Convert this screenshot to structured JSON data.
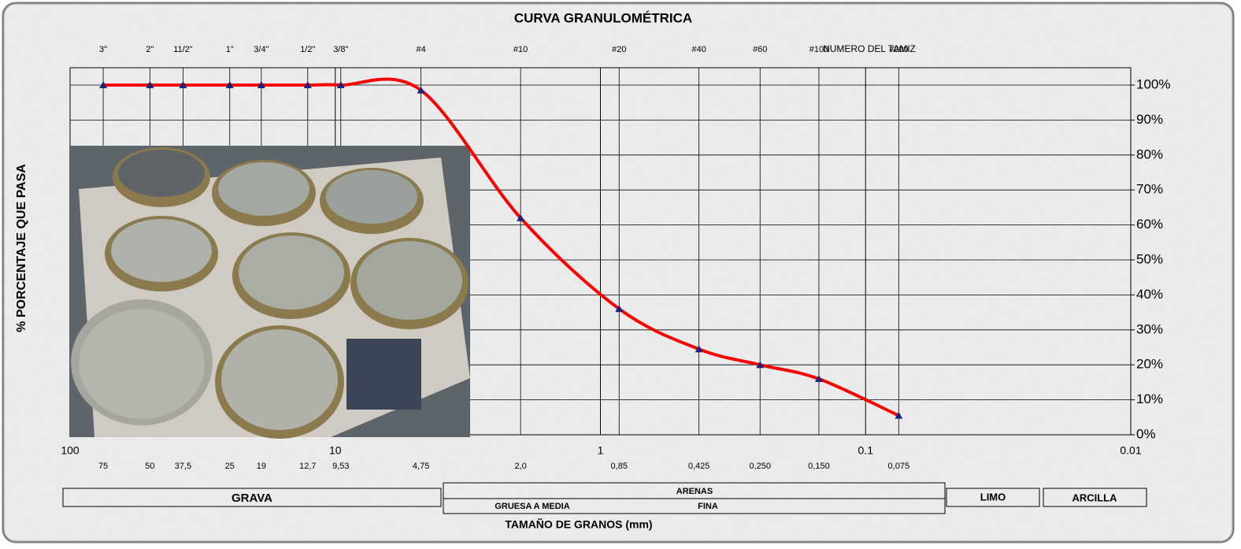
{
  "chart_data": {
    "type": "line",
    "title": "CURVA GRANULOMÉTRICA",
    "y_label": "% PORCENTAJE QUE PASA",
    "x_label": "TAMAÑO DE GRANOS (mm)",
    "sieve_axis_label": "NUMERO DEL TAMIZ",
    "x": [
      75,
      50,
      37.5,
      25,
      19,
      12.7,
      9.53,
      4.75,
      2.0,
      0.85,
      0.425,
      0.25,
      0.15,
      0.075
    ],
    "values": [
      100,
      100,
      100,
      100,
      100,
      100,
      100,
      98.5,
      62,
      36,
      24.5,
      20,
      16,
      5.5
    ],
    "sieve_names": [
      "3\"",
      "2\"",
      "11/2\"",
      "1\"",
      "3/4\"",
      "1/2\"",
      "3/8\"",
      "#4",
      "#10",
      "#20",
      "#40",
      "#60",
      "#100",
      "#200"
    ],
    "sieve_size_labels": [
      "75",
      "50",
      "37,5",
      "25",
      "19",
      "12,7",
      "9,53",
      "4,75",
      "2,0",
      "0,85",
      "0,425",
      "0,250",
      "0,150",
      "0,075"
    ],
    "color": "#ff0000",
    "marker_color": "#1a237e",
    "xscale": "log",
    "xlim": [
      100,
      0.01
    ],
    "xticks": [
      100,
      10,
      1,
      0.1,
      0.01
    ],
    "ylim": [
      0,
      100
    ],
    "yticks": [
      {
        "value": 0,
        "label": "0%"
      },
      {
        "value": 10,
        "label": "10%"
      },
      {
        "value": 20,
        "label": "20%"
      },
      {
        "value": 30,
        "label": "30%"
      },
      {
        "value": 40,
        "label": "40%"
      },
      {
        "value": 50,
        "label": "50%"
      },
      {
        "value": 60,
        "label": "60%"
      },
      {
        "value": 70,
        "label": "70%"
      },
      {
        "value": 80,
        "label": "80%"
      },
      {
        "value": 90,
        "label": "90%"
      },
      {
        "value": 100,
        "label": "100%"
      }
    ],
    "grid": true,
    "soil_classes": {
      "gravel": "GRAVA",
      "sand": "ARENAS",
      "sand_coarse": "GRUESA A MEDIA",
      "sand_fine": "FINA",
      "silt": "LIMO",
      "clay": "ARCILLA"
    }
  }
}
